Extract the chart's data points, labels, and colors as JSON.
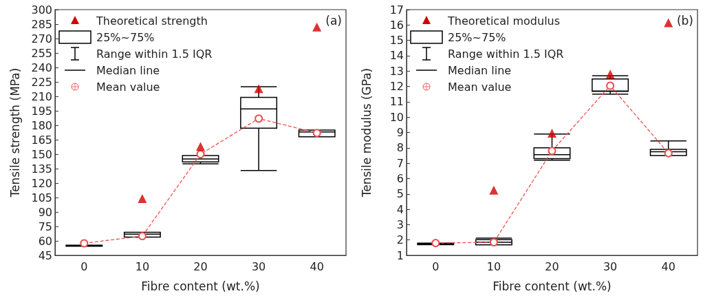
{
  "chart_data": [
    {
      "type": "box",
      "categories": [
        "0",
        "10",
        "20",
        "30",
        "40"
      ],
      "xlabel": "Fibre content (wt.%)",
      "ylabel": "Tensile strength (MPa)",
      "ylim": [
        45,
        300
      ],
      "yticks": [
        45,
        60,
        75,
        90,
        105,
        120,
        135,
        150,
        165,
        180,
        195,
        210,
        225,
        240,
        255,
        270,
        285,
        300
      ],
      "legend": "top left",
      "grid": false,
      "annotations": [
        "Range within 1.5 IQR",
        "Median line",
        "(a)"
      ],
      "series": [
        {
          "name": "Theoretical strength",
          "type": "scatter",
          "marker": "triangle",
          "color": "#d40000",
          "x": [
            "0",
            "10",
            "20",
            "30",
            "40"
          ],
          "values": [
            null,
            104,
            158,
            218,
            282
          ]
        },
        {
          "name": "25%~75%",
          "color": "#000000",
          "boxes": [
            {
              "low": 54.5,
              "q1": 54.5,
              "median": 55,
              "q3": 55.5,
              "high": 55.5
            },
            {
              "low": 64,
              "q1": 64,
              "median": 67,
              "q3": 69,
              "high": 69
            },
            {
              "low": 140,
              "q1": 142,
              "median": 145,
              "q3": 148.5,
              "high": 148.5
            },
            {
              "low": 133,
              "q1": 177,
              "median": 197,
              "q3": 209,
              "high": 220
            },
            {
              "low": 168,
              "q1": 168,
              "median": 173,
              "q3": 175,
              "high": 175
            }
          ]
        },
        {
          "name": "Mean value",
          "type": "line",
          "marker": "circle",
          "line_style": "dashed",
          "color": "#f05050",
          "values": [
            57.5,
            65,
            150,
            187,
            172
          ]
        }
      ]
    },
    {
      "type": "box",
      "categories": [
        "0",
        "10",
        "20",
        "30",
        "40"
      ],
      "xlabel": "Fibre content (wt.%)",
      "ylabel": "Tensile modulus (GPa)",
      "ylim": [
        1,
        17
      ],
      "yticks": [
        1,
        2,
        3,
        4,
        5,
        6,
        7,
        8,
        9,
        10,
        11,
        12,
        13,
        14,
        15,
        16,
        17
      ],
      "legend": "top left",
      "grid": false,
      "annotations": [
        "Range within 1.5 IQR",
        "Median line",
        "(b)"
      ],
      "series": [
        {
          "name": "Theoretical modulus",
          "type": "scatter",
          "marker": "triangle",
          "color": "#d40000",
          "x": [
            "0",
            "10",
            "20",
            "30",
            "40"
          ],
          "values": [
            null,
            5.25,
            8.95,
            12.8,
            16.15
          ]
        },
        {
          "name": "25%~75%",
          "color": "#000000",
          "boxes": [
            {
              "low": 1.7,
              "q1": 1.7,
              "median": 1.75,
              "q3": 1.8,
              "high": 1.8
            },
            {
              "low": 1.68,
              "q1": 1.68,
              "median": 1.85,
              "q3": 2.02,
              "high": 2.12
            },
            {
              "low": 7.2,
              "q1": 7.3,
              "median": 7.55,
              "q3": 8.0,
              "high": 8.9
            },
            {
              "low": 11.5,
              "q1": 11.68,
              "median": 11.7,
              "q3": 12.48,
              "high": 12.7
            },
            {
              "low": 7.5,
              "q1": 7.5,
              "median": 7.75,
              "q3": 7.9,
              "high": 8.45
            }
          ]
        },
        {
          "name": "Mean value",
          "type": "line",
          "marker": "circle",
          "line_style": "dashed",
          "color": "#f05050",
          "values": [
            1.8,
            1.85,
            7.8,
            12.05,
            7.65
          ]
        }
      ]
    }
  ]
}
